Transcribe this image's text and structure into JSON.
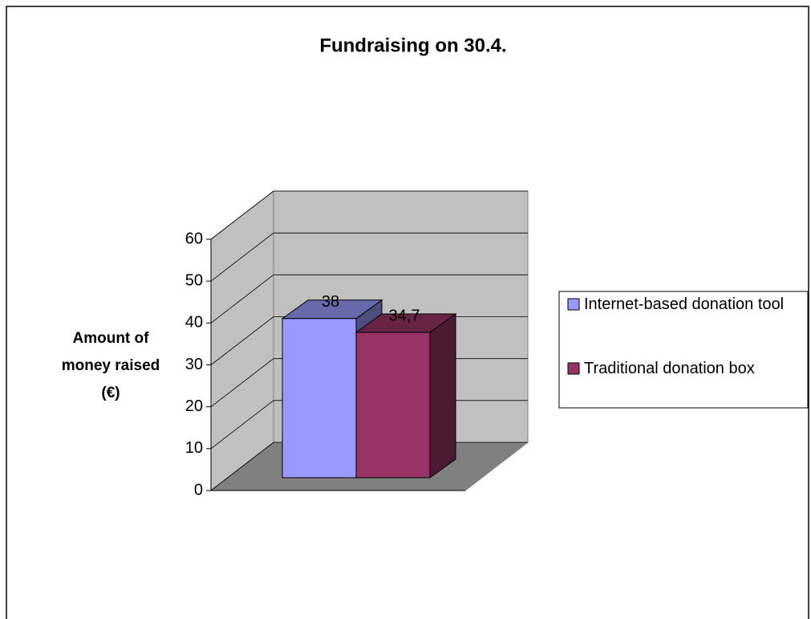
{
  "chart_data": {
    "type": "bar3d",
    "title": "Fundraising on 30.4.",
    "ylabel": "Amount of money raised (€)",
    "categories": [
      null
    ],
    "series": [
      {
        "name": "Internet-based donation tool",
        "color": "#9999ff",
        "values": [
          38
        ],
        "value_labels": [
          "38"
        ]
      },
      {
        "name": "Traditional donation box",
        "color": "#993366",
        "values": [
          34.7
        ],
        "value_labels": [
          "34,7"
        ]
      }
    ],
    "ylim": [
      0,
      60
    ],
    "yticks": [
      0,
      10,
      20,
      30,
      40,
      50,
      60
    ],
    "grid": true,
    "legend": "right"
  }
}
